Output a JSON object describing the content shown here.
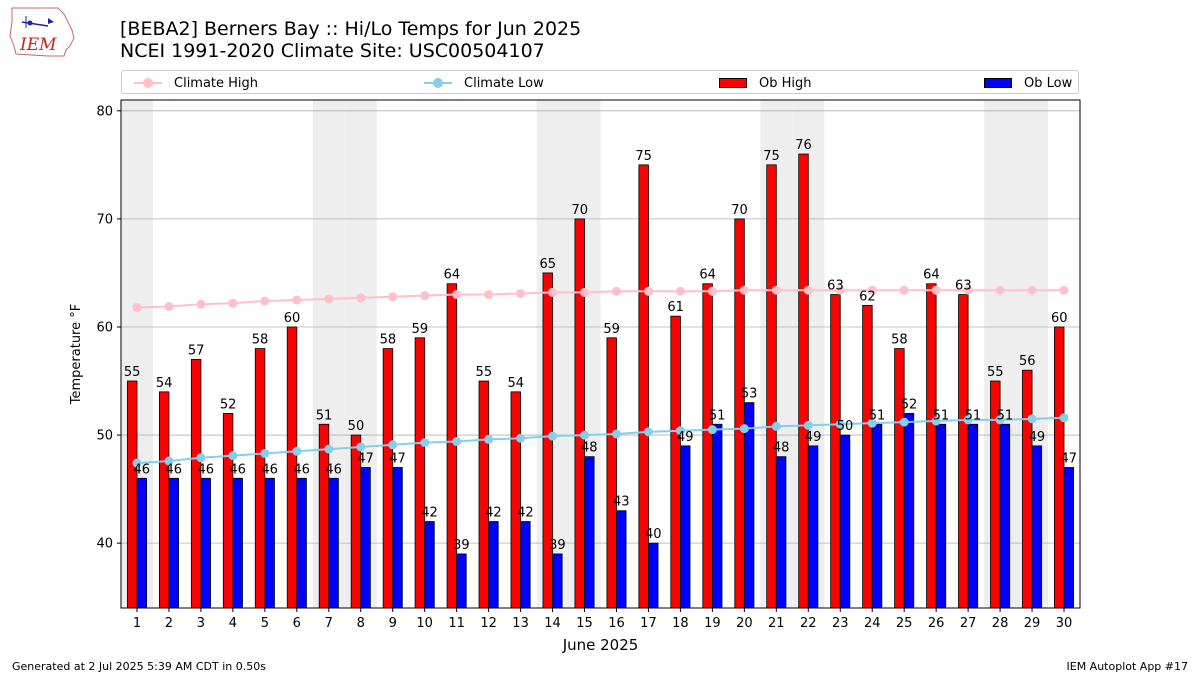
{
  "header": {
    "logo_text": "IEM",
    "title_line1": "[BEBA2] Berners Bay :: Hi/Lo Temps for Jun 2025",
    "title_line2": "NCEI 1991-2020 Climate Site: USC00504107"
  },
  "footer": {
    "generated": "Generated at 2 Jul 2025 5:39 AM CDT in 0.50s",
    "app": "IEM Autoplot App #17"
  },
  "colors": {
    "ob_high": "#ff0000",
    "ob_low": "#0000ff",
    "climate_high": "#ffc0cb",
    "climate_low": "#87ceeb",
    "weekend_shade": "#eeeeee",
    "grid": "#b0b0b0"
  },
  "chart_data": {
    "type": "bar",
    "xlabel": "June 2025",
    "ylabel": "Temperature °F",
    "ylim": [
      34,
      81
    ],
    "yticks": [
      40,
      50,
      60,
      70,
      80
    ],
    "grid": "horizontal",
    "legend_position": "top",
    "categories": [
      "1",
      "2",
      "3",
      "4",
      "5",
      "6",
      "7",
      "8",
      "9",
      "10",
      "11",
      "12",
      "13",
      "14",
      "15",
      "16",
      "17",
      "18",
      "19",
      "20",
      "21",
      "22",
      "23",
      "24",
      "25",
      "26",
      "27",
      "28",
      "29",
      "30"
    ],
    "shaded_days": [
      1,
      7,
      8,
      14,
      15,
      21,
      22,
      28,
      29
    ],
    "series": [
      {
        "name": "Ob High",
        "kind": "bar",
        "values": [
          55,
          54,
          57,
          52,
          58,
          60,
          51,
          50,
          58,
          59,
          64,
          55,
          54,
          65,
          70,
          59,
          75,
          61,
          64,
          70,
          75,
          76,
          63,
          62,
          58,
          64,
          63,
          55,
          56,
          60
        ]
      },
      {
        "name": "Ob Low",
        "kind": "bar",
        "values": [
          46,
          46,
          46,
          46,
          46,
          46,
          46,
          47,
          47,
          42,
          39,
          42,
          42,
          39,
          48,
          43,
          40,
          49,
          51,
          53,
          48,
          49,
          50,
          51,
          52,
          51,
          51,
          51,
          49,
          47
        ]
      },
      {
        "name": "Climate High",
        "kind": "line",
        "values": [
          61.8,
          61.9,
          62.1,
          62.2,
          62.4,
          62.5,
          62.6,
          62.7,
          62.8,
          62.9,
          63.0,
          63.0,
          63.1,
          63.2,
          63.2,
          63.3,
          63.3,
          63.3,
          63.3,
          63.4,
          63.4,
          63.4,
          63.4,
          63.4,
          63.4,
          63.4,
          63.4,
          63.4,
          63.4,
          63.4
        ]
      },
      {
        "name": "Climate Low",
        "kind": "line",
        "values": [
          47.4,
          47.6,
          47.9,
          48.1,
          48.3,
          48.5,
          48.7,
          48.9,
          49.1,
          49.3,
          49.4,
          49.6,
          49.7,
          49.9,
          50.0,
          50.1,
          50.3,
          50.4,
          50.5,
          50.6,
          50.8,
          50.9,
          51.0,
          51.1,
          51.2,
          51.3,
          51.4,
          51.4,
          51.5,
          51.6
        ]
      }
    ]
  }
}
